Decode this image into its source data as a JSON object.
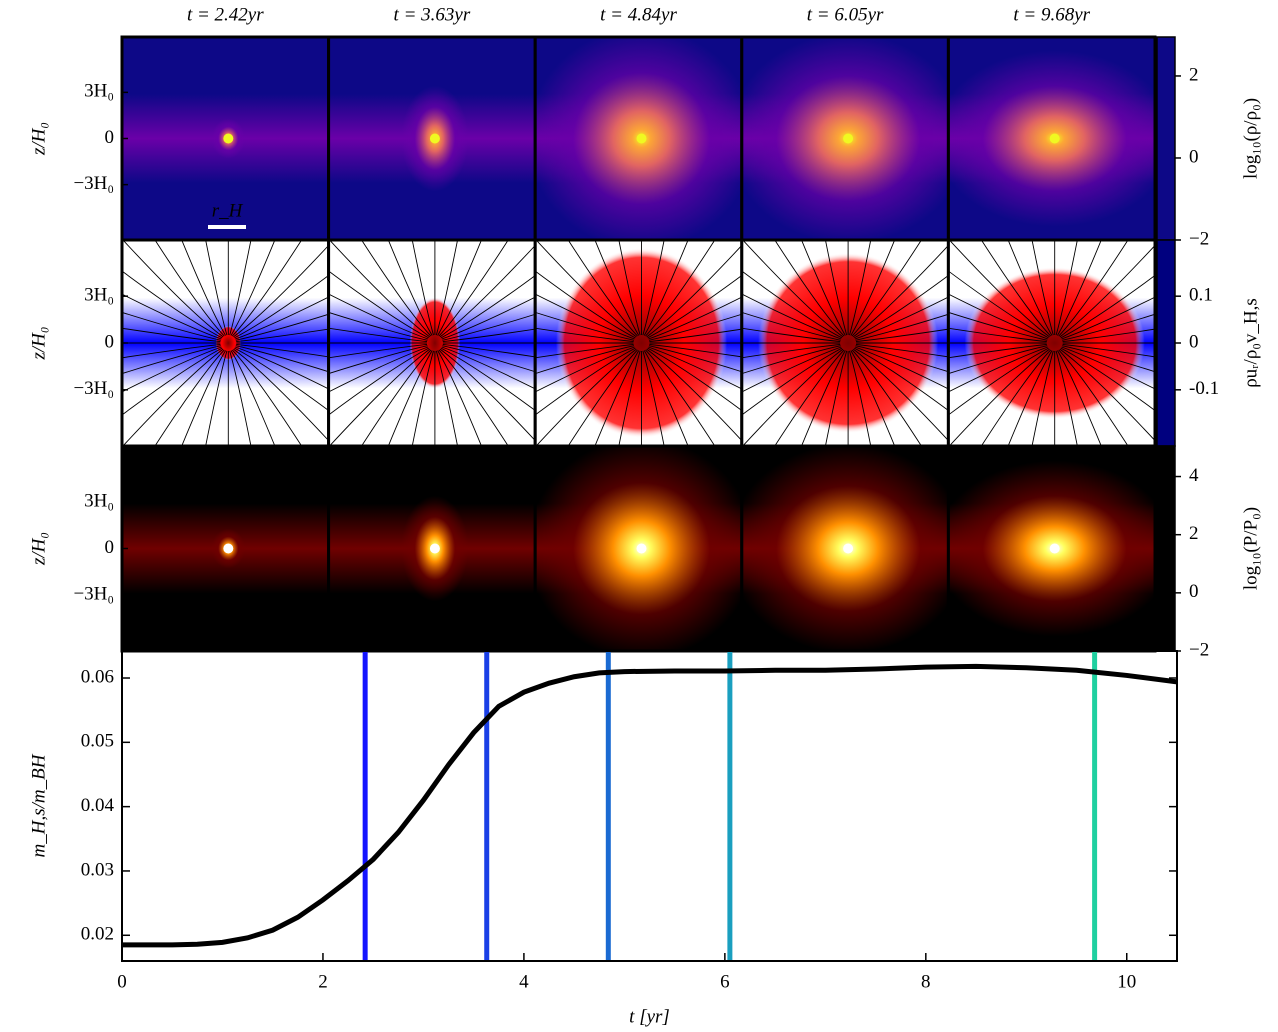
{
  "chart_data": [
    {
      "type": "heatmap-grid",
      "titles": [
        "t = 2.42yr",
        "t = 3.63yr",
        "t = 4.84yr",
        "t = 6.05yr",
        "t = 9.68yr"
      ],
      "ylabel": "z/H₀",
      "ylim": [
        -6.6,
        6.6
      ],
      "yticks": [
        {
          "value": 3,
          "label": "3H₀"
        },
        0,
        {
          "value": -3,
          "label": "−3H₀"
        }
      ],
      "scale_label": "r_H",
      "rows": [
        {
          "colorbar_label": "log₁₀(ρ/ρ₀)",
          "clim": [
            -2,
            2.95
          ],
          "cticks": [
            {
              "value": -2,
              "label": "−2"
            },
            0,
            2
          ],
          "colormap": [
            "#0d0887",
            "#6a00a8",
            "#b12a90",
            "#e16462",
            "#fca636",
            "#f0f921"
          ]
        },
        {
          "colorbar_label": "ρuᵣ/ρ₀v_H,s",
          "clim": [
            -0.22,
            0.22
          ],
          "cticks": [
            {
              "value": -0.1,
              "label": "-0.1"
            },
            0,
            0.1
          ],
          "colormap": [
            "#00007f",
            "#0000ff",
            "#ffffff",
            "#ff0000",
            "#7f0000"
          ]
        },
        {
          "colorbar_label": "log₁₀(P/P₀)",
          "clim": [
            -2,
            5.05
          ],
          "cticks": [
            {
              "value": -2,
              "label": "−2"
            },
            0,
            2,
            4
          ],
          "colormap": [
            "#000000",
            "#700000",
            "#e03000",
            "#ff9000",
            "#ffff60",
            "#ffffff"
          ]
        }
      ]
    },
    {
      "type": "line",
      "xlabel": "t [yr]",
      "ylabel": "m_H,s/m_BH",
      "color": "#000000",
      "x": [
        0,
        0.5,
        0.75,
        1,
        1.25,
        1.5,
        1.75,
        2,
        2.25,
        2.5,
        2.75,
        3,
        3.25,
        3.5,
        3.75,
        4,
        4.25,
        4.5,
        4.75,
        5,
        5.5,
        6,
        6.5,
        7,
        7.5,
        8,
        8.5,
        9,
        9.5,
        10,
        10.5
      ],
      "values": [
        0.0185,
        0.0185,
        0.0186,
        0.0189,
        0.0196,
        0.0208,
        0.0228,
        0.0255,
        0.0285,
        0.0318,
        0.036,
        0.041,
        0.0465,
        0.0515,
        0.0556,
        0.0578,
        0.0592,
        0.0602,
        0.0608,
        0.061,
        0.0611,
        0.0611,
        0.0612,
        0.0612,
        0.0614,
        0.0617,
        0.0618,
        0.0616,
        0.0612,
        0.0604,
        0.0594
      ],
      "xlim": [
        0,
        10.5
      ],
      "ylim": [
        0.016,
        0.0642
      ],
      "xticks": [
        0,
        2,
        4,
        6,
        8,
        10
      ],
      "yticks": [
        0.02,
        0.03,
        0.04,
        0.05,
        0.06
      ],
      "markers": [
        {
          "x": 2.42,
          "color": "#1414ff"
        },
        {
          "x": 3.63,
          "color": "#1a3fe6"
        },
        {
          "x": 4.84,
          "color": "#1a6ad2"
        },
        {
          "x": 6.05,
          "color": "#1a9fbf"
        },
        {
          "x": 9.68,
          "color": "#1fd0a0"
        }
      ]
    }
  ]
}
